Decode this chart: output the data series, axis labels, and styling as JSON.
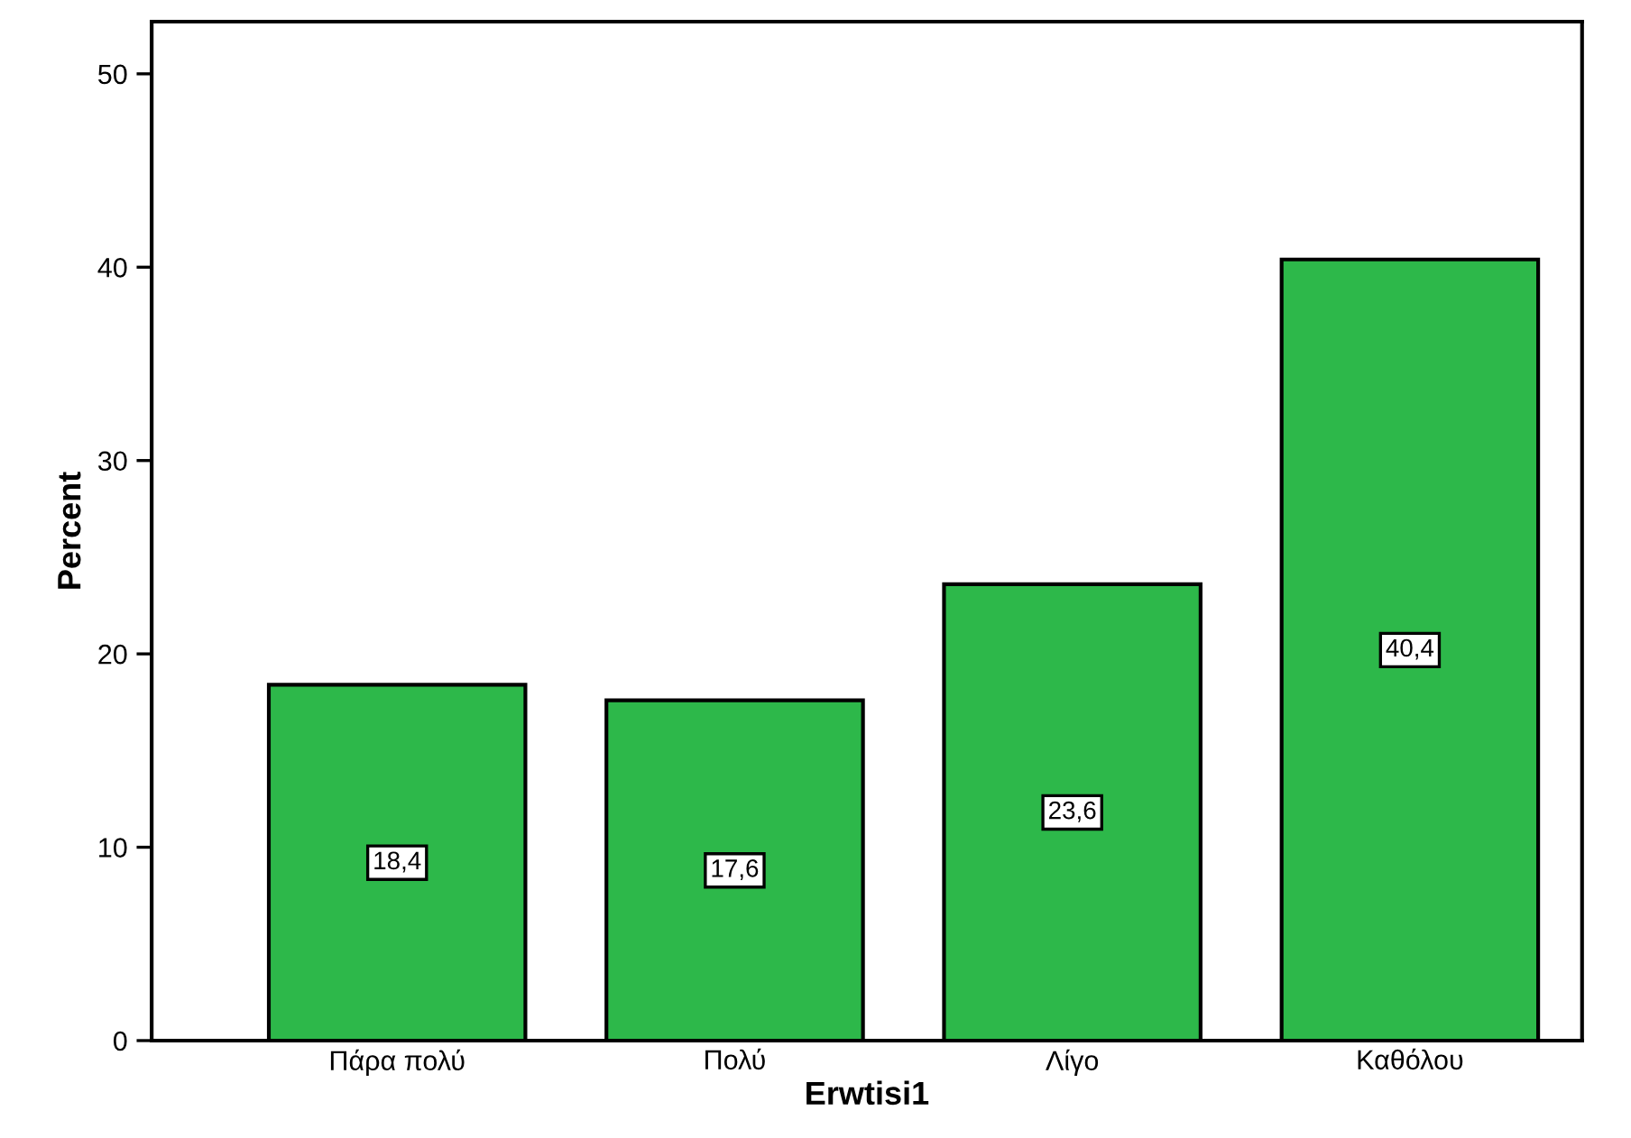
{
  "chart_data": {
    "type": "bar",
    "xlabel": "Erwtisi1",
    "ylabel": "Percent",
    "categories": [
      "Πάρα πολύ",
      "Πολύ",
      "Λίγο",
      "Καθόλου"
    ],
    "values": [
      18.4,
      17.6,
      23.6,
      40.4
    ],
    "value_labels": [
      "18,4",
      "17,6",
      "23,6",
      "40,4"
    ],
    "color": "#2db84a",
    "ylim": [
      0,
      52.7
    ],
    "yticks": [
      0,
      10,
      20,
      30,
      40,
      50
    ],
    "grid": false,
    "legend": false
  }
}
